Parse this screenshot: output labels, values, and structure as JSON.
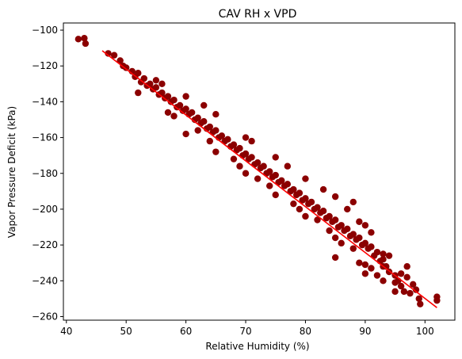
{
  "chart_data": {
    "type": "scatter",
    "title": "CAV RH x VPD",
    "xlabel": "Relative Humidity (%)",
    "ylabel": "Vapor Pressure Deficit (kPa)",
    "xlim": [
      39.5,
      105
    ],
    "ylim": [
      -262,
      -96
    ],
    "xticks": [
      40,
      50,
      60,
      70,
      80,
      90,
      100
    ],
    "xtick_labels": [
      "40",
      "50",
      "60",
      "70",
      "80",
      "90",
      "100"
    ],
    "yticks": [
      -100,
      -120,
      -140,
      -160,
      -180,
      -200,
      -220,
      -240,
      -260
    ],
    "ytick_labels": [
      "−100",
      "−120",
      "−140",
      "−160",
      "−180",
      "−200",
      "−220",
      "−240",
      "−260"
    ],
    "grid": false,
    "legend": "none",
    "colors": {
      "points": "#8b0000",
      "trend": "#ff0000"
    },
    "series": [
      {
        "kind": "points",
        "points": [
          [
            42,
            -105
          ],
          [
            43,
            -104.5
          ],
          [
            43.2,
            -107.5
          ],
          [
            47,
            -113
          ],
          [
            48,
            -114
          ],
          [
            49,
            -117
          ],
          [
            49.5,
            -120
          ],
          [
            50,
            -121
          ],
          [
            51,
            -123
          ],
          [
            51.5,
            -126
          ],
          [
            52,
            -124
          ],
          [
            52.5,
            -129
          ],
          [
            53,
            -127
          ],
          [
            53.5,
            -131
          ],
          [
            54,
            -130
          ],
          [
            54.5,
            -133
          ],
          [
            55,
            -132
          ],
          [
            55.5,
            -136
          ],
          [
            56,
            -135
          ],
          [
            56.5,
            -138
          ],
          [
            57,
            -137
          ],
          [
            57.5,
            -140
          ],
          [
            58,
            -139
          ],
          [
            58.5,
            -143
          ],
          [
            59,
            -142
          ],
          [
            59.5,
            -145
          ],
          [
            60,
            -144
          ],
          [
            60.5,
            -147
          ],
          [
            61,
            -146
          ],
          [
            61.5,
            -150
          ],
          [
            62,
            -149
          ],
          [
            62.5,
            -152
          ],
          [
            63,
            -151
          ],
          [
            63.5,
            -155
          ],
          [
            64,
            -154
          ],
          [
            64.5,
            -157
          ],
          [
            65,
            -156
          ],
          [
            65.5,
            -160
          ],
          [
            66,
            -159
          ],
          [
            66.5,
            -162
          ],
          [
            67,
            -161
          ],
          [
            67.5,
            -165
          ],
          [
            68,
            -164
          ],
          [
            68.5,
            -167
          ],
          [
            69,
            -166
          ],
          [
            69.5,
            -170
          ],
          [
            70,
            -169
          ],
          [
            70.5,
            -172
          ],
          [
            71,
            -171
          ],
          [
            71.5,
            -175
          ],
          [
            72,
            -174
          ],
          [
            72.5,
            -177
          ],
          [
            73,
            -176
          ],
          [
            73.5,
            -180
          ],
          [
            74,
            -179
          ],
          [
            74.5,
            -182
          ],
          [
            75,
            -181
          ],
          [
            75.5,
            -185
          ],
          [
            76,
            -184
          ],
          [
            76.5,
            -187
          ],
          [
            77,
            -186
          ],
          [
            77.5,
            -190
          ],
          [
            78,
            -189
          ],
          [
            78.5,
            -192
          ],
          [
            79,
            -191
          ],
          [
            79.5,
            -195
          ],
          [
            80,
            -194
          ],
          [
            80.5,
            -197
          ],
          [
            81,
            -196
          ],
          [
            81.5,
            -200
          ],
          [
            82,
            -199
          ],
          [
            82.5,
            -202
          ],
          [
            83,
            -201
          ],
          [
            83.5,
            -205
          ],
          [
            84,
            -204
          ],
          [
            84.5,
            -207
          ],
          [
            85,
            -206
          ],
          [
            85.5,
            -210
          ],
          [
            86,
            -209
          ],
          [
            86.5,
            -212
          ],
          [
            87,
            -211
          ],
          [
            87.5,
            -215
          ],
          [
            88,
            -214
          ],
          [
            88.5,
            -217
          ],
          [
            89,
            -216
          ],
          [
            89.5,
            -220
          ],
          [
            90,
            -219
          ],
          [
            90.5,
            -222
          ],
          [
            91,
            -221
          ],
          [
            91.5,
            -226
          ],
          [
            92,
            -224
          ],
          [
            92.5,
            -229
          ],
          [
            93,
            -228
          ],
          [
            93.5,
            -232
          ],
          [
            94,
            -235
          ],
          [
            95,
            -237
          ],
          [
            95.5,
            -240
          ],
          [
            96,
            -243
          ],
          [
            96.5,
            -246
          ],
          [
            97,
            -238
          ],
          [
            97.5,
            -247
          ],
          [
            98,
            -242
          ],
          [
            98.5,
            -245
          ],
          [
            99,
            -250
          ],
          [
            99.2,
            -253
          ],
          [
            102,
            -249
          ],
          [
            102,
            -251
          ],
          [
            55,
            -128
          ],
          [
            60,
            -137
          ],
          [
            65,
            -147
          ],
          [
            70,
            -160
          ],
          [
            75,
            -171
          ],
          [
            80,
            -183
          ],
          [
            85,
            -193
          ],
          [
            90,
            -209
          ],
          [
            60,
            -158
          ],
          [
            65,
            -168
          ],
          [
            70,
            -180
          ],
          [
            75,
            -192
          ],
          [
            80,
            -204
          ],
          [
            85,
            -216
          ],
          [
            90,
            -231
          ],
          [
            52,
            -135
          ],
          [
            58,
            -148
          ],
          [
            62,
            -156
          ],
          [
            68,
            -172
          ],
          [
            72,
            -183
          ],
          [
            78,
            -197
          ],
          [
            82,
            -206
          ],
          [
            88,
            -222
          ],
          [
            88,
            -196
          ],
          [
            92,
            -237
          ],
          [
            93,
            -240
          ],
          [
            85,
            -227
          ],
          [
            91,
            -213
          ],
          [
            93,
            -225
          ],
          [
            95,
            -246
          ],
          [
            97,
            -232
          ],
          [
            94,
            -226
          ],
          [
            91,
            -233
          ],
          [
            89,
            -230
          ],
          [
            93,
            -232
          ],
          [
            95,
            -241
          ],
          [
            96,
            -236
          ],
          [
            90,
            -236
          ],
          [
            56,
            -130
          ],
          [
            63,
            -142
          ],
          [
            71,
            -162
          ],
          [
            77,
            -176
          ],
          [
            83,
            -189
          ],
          [
            87,
            -200
          ],
          [
            89,
            -207
          ],
          [
            57,
            -146
          ],
          [
            64,
            -162
          ],
          [
            69,
            -176
          ],
          [
            74,
            -187
          ],
          [
            79,
            -200
          ],
          [
            84,
            -212
          ],
          [
            86,
            -219
          ]
        ]
      },
      {
        "kind": "trend",
        "line": [
          [
            46,
            -111.5
          ],
          [
            102,
            -255
          ]
        ]
      }
    ]
  }
}
